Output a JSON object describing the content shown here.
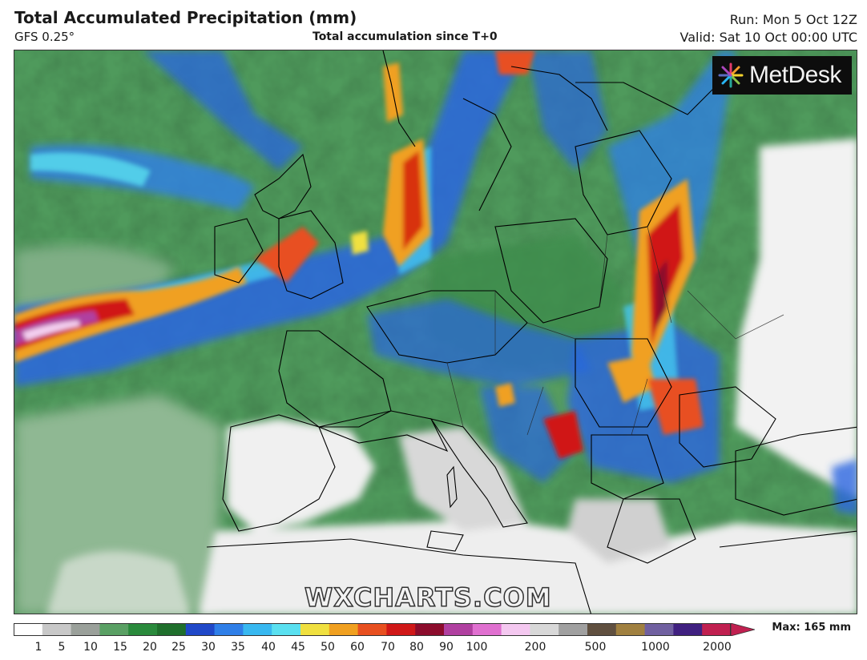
{
  "header": {
    "title": "Total Accumulated Precipitation (mm)",
    "model": "GFS 0.25°",
    "subtitle": "Total accumulation since T+0",
    "run": "Run: Mon 5 Oct 12Z",
    "valid": "Valid: Sat 10 Oct 00:00 UTC"
  },
  "logo": {
    "text": "MetDesk"
  },
  "watermark": "WXCHARTS.COM",
  "legend": {
    "ticks": [
      "1",
      "5",
      "10",
      "15",
      "20",
      "25",
      "30",
      "35",
      "40",
      "45",
      "50",
      "60",
      "70",
      "80",
      "90",
      "100",
      "200",
      "500",
      "1000",
      "2000"
    ],
    "max_label": "Max: 165 mm",
    "colors": [
      "#ffffff",
      "#c8c8c8",
      "#9aa09a",
      "#5aa064",
      "#2a8a3c",
      "#1f6f2c",
      "#2048c8",
      "#2f7fe8",
      "#38b8f0",
      "#5ae0f0",
      "#f0e040",
      "#f0a020",
      "#e85020",
      "#d01818",
      "#8c0c2c",
      "#b040a0",
      "#e070d0",
      "#f4c8f0",
      "#d8d8d8",
      "#a0a0a0",
      "#605040",
      "#a08040",
      "#7060a0",
      "#402080",
      "#c02050"
    ],
    "unit": "mm"
  },
  "map": {
    "land_color": "#e8e8e8",
    "sea_color": "#6a9a70",
    "border_color": "#000000"
  }
}
